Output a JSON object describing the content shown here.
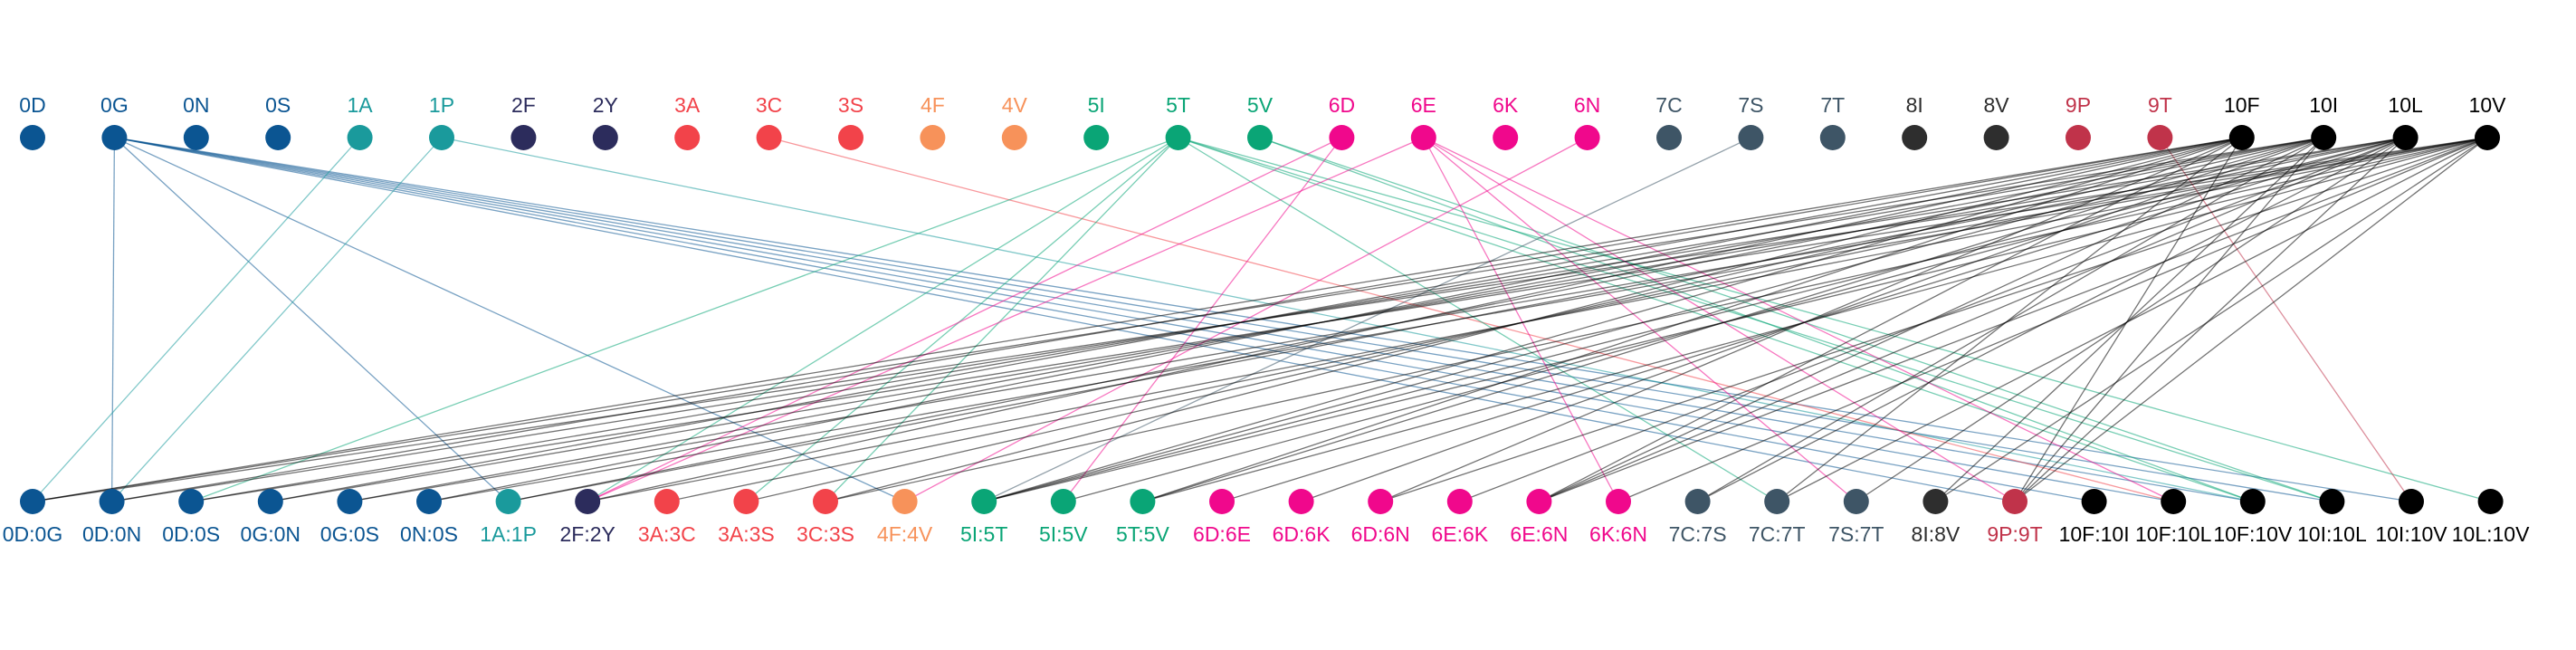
{
  "diagram": {
    "top_nodes": [
      {
        "label": "0D",
        "color": "#0b5592"
      },
      {
        "label": "0G",
        "color": "#0b5592"
      },
      {
        "label": "0N",
        "color": "#0b5592"
      },
      {
        "label": "0S",
        "color": "#0b5592"
      },
      {
        "label": "1A",
        "color": "#1a9a9c"
      },
      {
        "label": "1P",
        "color": "#1a9a9c"
      },
      {
        "label": "2F",
        "color": "#2c2c5c"
      },
      {
        "label": "2Y",
        "color": "#2c2c5c"
      },
      {
        "label": "3A",
        "color": "#f2434a"
      },
      {
        "label": "3C",
        "color": "#f2434a"
      },
      {
        "label": "3S",
        "color": "#f2434a"
      },
      {
        "label": "4F",
        "color": "#f7925a"
      },
      {
        "label": "4V",
        "color": "#f7925a"
      },
      {
        "label": "5I",
        "color": "#0aa576"
      },
      {
        "label": "5T",
        "color": "#0aa576"
      },
      {
        "label": "5V",
        "color": "#0aa576"
      },
      {
        "label": "6D",
        "color": "#f0088c"
      },
      {
        "label": "6E",
        "color": "#f0088c"
      },
      {
        "label": "6K",
        "color": "#f0088c"
      },
      {
        "label": "6N",
        "color": "#f0088c"
      },
      {
        "label": "7C",
        "color": "#3e5566"
      },
      {
        "label": "7S",
        "color": "#3e5566"
      },
      {
        "label": "7T",
        "color": "#3e5566"
      },
      {
        "label": "8I",
        "color": "#2e2e2e"
      },
      {
        "label": "8V",
        "color": "#2e2e2e"
      },
      {
        "label": "9P",
        "color": "#c0334a"
      },
      {
        "label": "9T",
        "color": "#c0334a"
      },
      {
        "label": "10F",
        "color": "#000000"
      },
      {
        "label": "10I",
        "color": "#000000"
      },
      {
        "label": "10L",
        "color": "#000000"
      },
      {
        "label": "10V",
        "color": "#000000"
      }
    ],
    "bottom_nodes": [
      {
        "label": "0D:0G",
        "color": "#0b5592"
      },
      {
        "label": "0D:0N",
        "color": "#0b5592"
      },
      {
        "label": "0D:0S",
        "color": "#0b5592"
      },
      {
        "label": "0G:0N",
        "color": "#0b5592"
      },
      {
        "label": "0G:0S",
        "color": "#0b5592"
      },
      {
        "label": "0N:0S",
        "color": "#0b5592"
      },
      {
        "label": "1A:1P",
        "color": "#1a9a9c"
      },
      {
        "label": "2F:2Y",
        "color": "#2c2c5c"
      },
      {
        "label": "3A:3C",
        "color": "#f2434a"
      },
      {
        "label": "3A:3S",
        "color": "#f2434a"
      },
      {
        "label": "3C:3S",
        "color": "#f2434a"
      },
      {
        "label": "4F:4V",
        "color": "#f7925a"
      },
      {
        "label": "5I:5T",
        "color": "#0aa576"
      },
      {
        "label": "5I:5V",
        "color": "#0aa576"
      },
      {
        "label": "5T:5V",
        "color": "#0aa576"
      },
      {
        "label": "6D:6E",
        "color": "#f0088c"
      },
      {
        "label": "6D:6K",
        "color": "#f0088c"
      },
      {
        "label": "6D:6N",
        "color": "#f0088c"
      },
      {
        "label": "6E:6K",
        "color": "#f0088c"
      },
      {
        "label": "6E:6N",
        "color": "#f0088c"
      },
      {
        "label": "6K:6N",
        "color": "#f0088c"
      },
      {
        "label": "7C:7S",
        "color": "#3e5566"
      },
      {
        "label": "7C:7T",
        "color": "#3e5566"
      },
      {
        "label": "7S:7T",
        "color": "#3e5566"
      },
      {
        "label": "8I:8V",
        "color": "#2e2e2e"
      },
      {
        "label": "9P:9T",
        "color": "#c0334a"
      },
      {
        "label": "10F:10I",
        "color": "#000000"
      },
      {
        "label": "10F:10L",
        "color": "#000000"
      },
      {
        "label": "10F:10V",
        "color": "#000000"
      },
      {
        "label": "10I:10L",
        "color": "#000000"
      },
      {
        "label": "10I:10V",
        "color": "#000000"
      },
      {
        "label": "10L:10V",
        "color": "#000000"
      }
    ],
    "edges": [
      {
        "from": "0G",
        "to": "0D:0N"
      },
      {
        "from": "0G",
        "to": "1A:1P"
      },
      {
        "from": "0G",
        "to": "4F:4V"
      },
      {
        "from": "0G",
        "to": "9P:9T"
      },
      {
        "from": "0G",
        "to": "10F:10I"
      },
      {
        "from": "0G",
        "to": "10F:10L"
      },
      {
        "from": "0G",
        "to": "10F:10V"
      },
      {
        "from": "0G",
        "to": "10I:10L"
      },
      {
        "from": "0G",
        "to": "10I:10V"
      },
      {
        "from": "1A",
        "to": "0D:0G"
      },
      {
        "from": "1P",
        "to": "0D:0N"
      },
      {
        "from": "1P",
        "to": "10F:10V"
      },
      {
        "from": "3C",
        "to": "10F:10L"
      },
      {
        "from": "5T",
        "to": "0D:0S"
      },
      {
        "from": "5T",
        "to": "2F:2Y"
      },
      {
        "from": "5T",
        "to": "3A:3S"
      },
      {
        "from": "5T",
        "to": "3C:3S"
      },
      {
        "from": "5T",
        "to": "7C:7T"
      },
      {
        "from": "5T",
        "to": "10F:10V"
      },
      {
        "from": "5T",
        "to": "10I:10L"
      },
      {
        "from": "5T",
        "to": "10L:10V"
      },
      {
        "from": "5V",
        "to": "10F:10V"
      },
      {
        "from": "5V",
        "to": "10I:10L"
      },
      {
        "from": "6D",
        "to": "2F:2Y"
      },
      {
        "from": "6D",
        "to": "5I:5V"
      },
      {
        "from": "6E",
        "to": "2F:2Y"
      },
      {
        "from": "6E",
        "to": "6K:6N"
      },
      {
        "from": "6E",
        "to": "7S:7T"
      },
      {
        "from": "6E",
        "to": "9P:9T"
      },
      {
        "from": "6E",
        "to": "10F:10L"
      },
      {
        "from": "6N",
        "to": "4F:4V"
      },
      {
        "from": "9T",
        "to": "10I:10V"
      },
      {
        "from": "7S",
        "to": "5I:5T"
      },
      {
        "from": "10F",
        "to": "0D:0G"
      },
      {
        "from": "10F",
        "to": "0D:0N"
      },
      {
        "from": "10F",
        "to": "0G:0N"
      },
      {
        "from": "10F",
        "to": "0N:0S"
      },
      {
        "from": "10F",
        "to": "2F:2Y"
      },
      {
        "from": "10F",
        "to": "3C:3S"
      },
      {
        "from": "10F",
        "to": "5I:5T"
      },
      {
        "from": "10F",
        "to": "5T:5V"
      },
      {
        "from": "10F",
        "to": "6D:6N"
      },
      {
        "from": "10F",
        "to": "6E:6N"
      },
      {
        "from": "10F",
        "to": "7C:7T"
      },
      {
        "from": "10F",
        "to": "9P:9T"
      },
      {
        "from": "10I",
        "to": "0D:0G"
      },
      {
        "from": "10I",
        "to": "0D:0S"
      },
      {
        "from": "10I",
        "to": "0G:0S"
      },
      {
        "from": "10I",
        "to": "1A:1P"
      },
      {
        "from": "10I",
        "to": "3A:3S"
      },
      {
        "from": "10I",
        "to": "5I:5T"
      },
      {
        "from": "10I",
        "to": "5T:5V"
      },
      {
        "from": "10I",
        "to": "6D:6K"
      },
      {
        "from": "10I",
        "to": "6E:6N"
      },
      {
        "from": "10I",
        "to": "7C:7S"
      },
      {
        "from": "10I",
        "to": "8I:8V"
      },
      {
        "from": "10I",
        "to": "9P:9T"
      },
      {
        "from": "10L",
        "to": "0D:0N"
      },
      {
        "from": "10L",
        "to": "0G:0N"
      },
      {
        "from": "10L",
        "to": "1A:1P"
      },
      {
        "from": "10L",
        "to": "3A:3C"
      },
      {
        "from": "10L",
        "to": "5I:5T"
      },
      {
        "from": "10L",
        "to": "5I:5V"
      },
      {
        "from": "10L",
        "to": "6D:6E"
      },
      {
        "from": "10L",
        "to": "6E:6K"
      },
      {
        "from": "10L",
        "to": "6E:6N"
      },
      {
        "from": "10L",
        "to": "7C:7S"
      },
      {
        "from": "10L",
        "to": "7S:7T"
      },
      {
        "from": "10L",
        "to": "9P:9T"
      },
      {
        "from": "10V",
        "to": "0D:0G"
      },
      {
        "from": "10V",
        "to": "0D:0S"
      },
      {
        "from": "10V",
        "to": "0G:0S"
      },
      {
        "from": "10V",
        "to": "0N:0S"
      },
      {
        "from": "10V",
        "to": "2F:2Y"
      },
      {
        "from": "10V",
        "to": "3C:3S"
      },
      {
        "from": "10V",
        "to": "5I:5T"
      },
      {
        "from": "10V",
        "to": "5T:5V"
      },
      {
        "from": "10V",
        "to": "6D:6N"
      },
      {
        "from": "10V",
        "to": "6E:6N"
      },
      {
        "from": "10V",
        "to": "6K:6N"
      },
      {
        "from": "10V",
        "to": "7C:7T"
      },
      {
        "from": "10V",
        "to": "8I:8V"
      },
      {
        "from": "10V",
        "to": "9P:9T"
      }
    ]
  }
}
